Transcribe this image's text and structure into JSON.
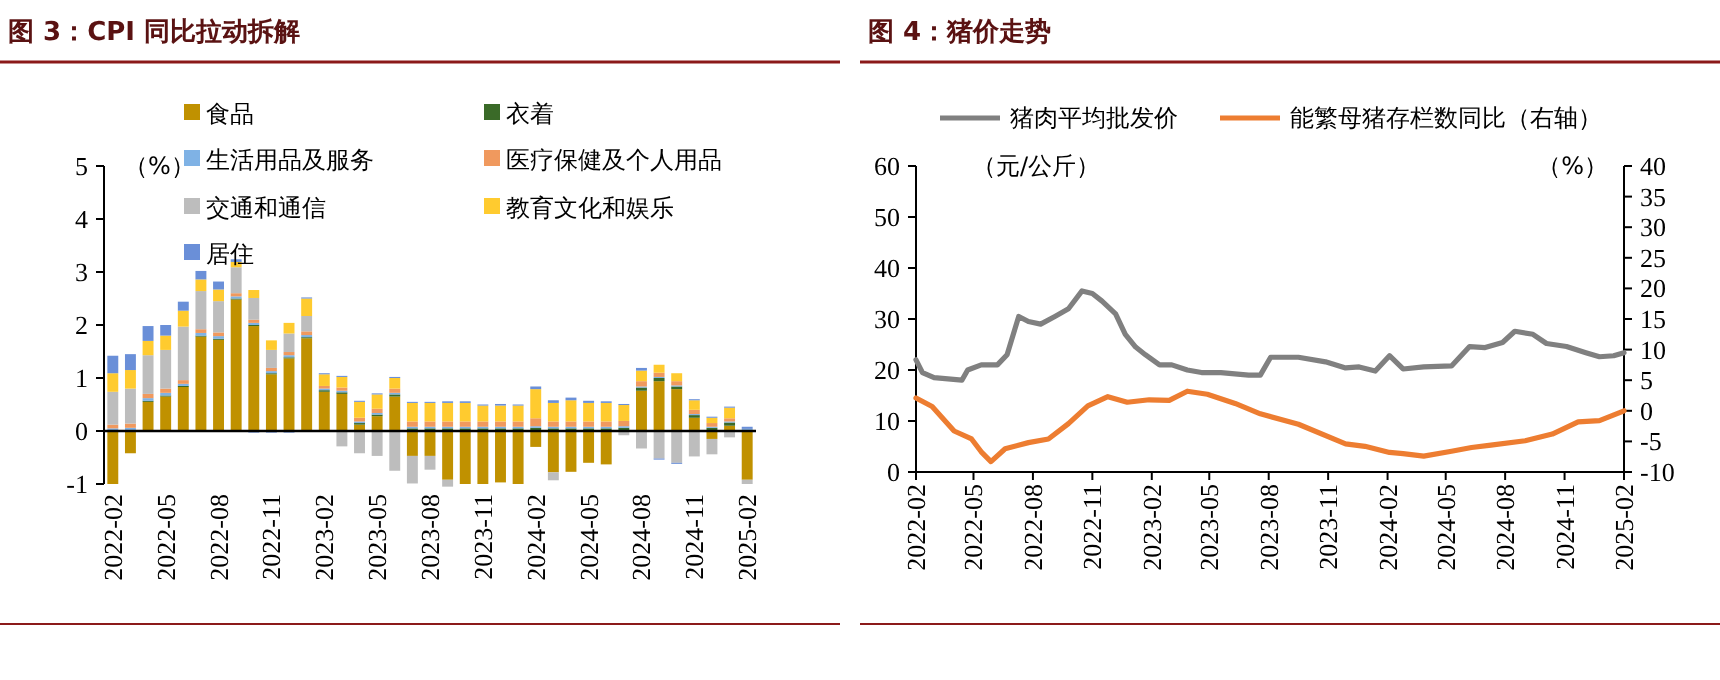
{
  "chart_data": [
    {
      "type": "bar",
      "stacked": true,
      "title": "图 3：CPI 同比拉动拆解",
      "ylabel": "（%）",
      "legend": "top",
      "ylim": [
        -1,
        5
      ],
      "yticks": [
        -1,
        0,
        1,
        2,
        3,
        4,
        5
      ],
      "categories": [
        "2022-02",
        null,
        null,
        "2022-05",
        null,
        null,
        "2022-08",
        null,
        null,
        "2022-11",
        null,
        null,
        "2023-02",
        null,
        null,
        "2023-05",
        null,
        null,
        "2023-08",
        null,
        null,
        "2023-11",
        null,
        null,
        "2024-02",
        null,
        null,
        "2024-05",
        null,
        null,
        "2024-08",
        null,
        null,
        "2024-11",
        null,
        null,
        "2025-02"
      ],
      "series": [
        {
          "name": "食品",
          "color": "#c09100",
          "values": [
            -1.0,
            -0.42,
            0.55,
            0.65,
            0.83,
            1.78,
            1.72,
            2.48,
            1.98,
            1.07,
            1.37,
            1.75,
            0.74,
            0.7,
            0.12,
            0.28,
            0.65,
            -0.47,
            -0.47,
            -0.92,
            -1.0,
            -1.0,
            -0.97,
            -1.0,
            -0.3,
            -0.78,
            -0.77,
            -0.6,
            -0.63,
            0.0,
            0.76,
            0.94,
            0.79,
            0.25,
            -0.15,
            0.1,
            -0.92
          ]
        },
        {
          "name": "衣着",
          "color": "#3a6a28",
          "values": [
            0.02,
            0.02,
            0.02,
            0.02,
            0.02,
            0.02,
            0.02,
            0.02,
            0.02,
            0.02,
            0.02,
            0.02,
            0.03,
            0.03,
            0.03,
            0.03,
            0.04,
            0.05,
            0.05,
            0.05,
            0.05,
            0.05,
            0.05,
            0.05,
            0.06,
            0.05,
            0.05,
            0.05,
            0.05,
            0.06,
            0.06,
            0.06,
            0.05,
            0.05,
            0.06,
            0.06,
            0.02
          ]
        },
        {
          "name": "生活用品及服务",
          "color": "#7fb2e5",
          "values": [
            0.03,
            0.04,
            0.05,
            0.05,
            0.04,
            0.05,
            0.05,
            0.04,
            0.04,
            0.04,
            0.04,
            0.04,
            0.03,
            0.03,
            0.03,
            0.03,
            0.03,
            0.03,
            0.03,
            0.03,
            0.03,
            0.03,
            0.03,
            0.03,
            0.03,
            0.03,
            0.03,
            0.03,
            0.03,
            0.03,
            0.02,
            0.02,
            0.02,
            0.02,
            0.02,
            0.02,
            0.02
          ]
        },
        {
          "name": "医疗保健及个人用品",
          "color": "#f0995e",
          "values": [
            0.07,
            0.08,
            0.08,
            0.08,
            0.07,
            0.07,
            0.07,
            0.06,
            0.06,
            0.06,
            0.06,
            0.07,
            0.05,
            0.06,
            0.07,
            0.08,
            0.08,
            0.1,
            0.1,
            0.1,
            0.1,
            0.1,
            0.1,
            0.1,
            0.15,
            0.1,
            0.1,
            0.1,
            0.1,
            0.1,
            0.1,
            0.08,
            0.08,
            0.08,
            0.07,
            0.06,
            0
          ]
        },
        {
          "name": "交通和通信",
          "color": "#bdbdbd",
          "values": [
            0.62,
            0.66,
            0.73,
            0.73,
            1.01,
            0.72,
            0.59,
            0.49,
            0.41,
            0.34,
            0.35,
            0.29,
            null,
            -0.29,
            -0.42,
            -0.47,
            -0.75,
            -0.52,
            -0.26,
            -0.13,
            0,
            0,
            null,
            0,
            0,
            -0.15,
            0,
            null,
            0,
            -0.08,
            -0.33,
            -0.52,
            -0.6,
            -0.48,
            -0.29,
            -0.12,
            -0.08
          ]
        },
        {
          "name": "教育文化和娱乐",
          "color": "#ffcb2f",
          "values": [
            0.35,
            0.35,
            0.27,
            0.27,
            0.3,
            0.22,
            0.22,
            0.1,
            0.15,
            0.18,
            0.2,
            0.33,
            0.22,
            0.2,
            0.3,
            0.27,
            0.2,
            0.35,
            0.35,
            0.35,
            0.35,
            0.3,
            0.3,
            0.3,
            0.55,
            0.35,
            0.4,
            0.35,
            0.35,
            0.3,
            0.2,
            0.15,
            0.15,
            0.18,
            0.1,
            0.2,
            0
          ]
        },
        {
          "name": "居住",
          "color": "#6a8fd8",
          "values": [
            0.33,
            0.3,
            0.28,
            0.2,
            0.17,
            0.16,
            0.15,
            0.05,
            -0.03,
            -0.03,
            -0.03,
            0.02,
            0.02,
            0.02,
            0.02,
            0.02,
            0.02,
            0.02,
            0.02,
            0.03,
            0.03,
            0.02,
            0.03,
            0.02,
            0.05,
            0.05,
            0.05,
            0.04,
            0.03,
            0.02,
            0.05,
            -0.02,
            -0.02,
            0.02,
            0.02,
            0.02,
            0.04
          ]
        }
      ]
    },
    {
      "type": "line",
      "title": "图 4：猪价走势",
      "ylabel": "（元/公斤）",
      "y2label": "（%）",
      "legend": "top",
      "grid": false,
      "xlim": [
        "2022-02-01",
        "2025-02-01"
      ],
      "xticks": [
        "2022-02",
        "2022-05",
        "2022-08",
        "2022-11",
        "2023-02",
        "2023-05",
        "2023-08",
        "2023-11",
        "2024-02",
        "2024-05",
        "2024-08",
        "2024-11",
        "2025-02"
      ],
      "ylim": [
        0,
        60
      ],
      "yticks": [
        0,
        10,
        20,
        30,
        40,
        50,
        60
      ],
      "y2lim": [
        -10,
        40
      ],
      "y2ticks": [
        -10,
        -5,
        0,
        5,
        10,
        15,
        20,
        25,
        30,
        35,
        40
      ],
      "series": [
        {
          "name": "猪肉平均批发价",
          "color": "#808080",
          "x": [
            "2022-02-01",
            "2022-02-11",
            "2022-03-01",
            "2022-04-13",
            "2022-04-22",
            "2022-05-13",
            "2022-06-07",
            "2022-06-22",
            "2022-07-10",
            "2022-07-25",
            "2022-08-13",
            "2022-09-04",
            "2022-09-25",
            "2022-10-16",
            "2022-11-01",
            "2022-11-16",
            "2022-12-07",
            "2022-12-22",
            "2023-01-07",
            "2023-01-22",
            "2023-02-13",
            "2023-03-04",
            "2023-03-28",
            "2023-04-19",
            "2023-05-19",
            "2023-07-01",
            "2023-07-19",
            "2023-08-04",
            "2023-08-16",
            "2023-09-16",
            "2023-10-28",
            "2023-11-28",
            "2023-12-19",
            "2024-01-13",
            "2024-02-04",
            "2024-02-25",
            "2024-03-28",
            "2024-05-10",
            "2024-06-07",
            "2024-07-01",
            "2024-07-28",
            "2024-08-16",
            "2024-09-13",
            "2024-10-04",
            "2024-11-04",
            "2024-12-04",
            "2024-12-25",
            "2025-01-16",
            "2025-02-01"
          ],
          "values": [
            22,
            19.5,
            18.5,
            18,
            20,
            21,
            21,
            23,
            30.5,
            29.5,
            29,
            30.5,
            32,
            35.5,
            35,
            33.5,
            31,
            27,
            24.5,
            23,
            21,
            21,
            20,
            19.5,
            19.5,
            19,
            19,
            22.5,
            22.5,
            22.5,
            21.6,
            20.4,
            20.6,
            19.8,
            22.8,
            20.2,
            20.6,
            20.8,
            24.6,
            24.4,
            25.4,
            27.6,
            27,
            25.2,
            24.6,
            23.4,
            22.6,
            22.8,
            23.4
          ]
        },
        {
          "name": "能繁母猪存栏数同比（右轴）",
          "color": "#ed7d31",
          "axis": "y2",
          "x": [
            "2022-02-01",
            "2022-02-26",
            "2022-04-01",
            "2022-04-28",
            "2022-05-13",
            "2022-05-28",
            "2022-06-19",
            "2022-07-25",
            "2022-08-25",
            "2022-09-25",
            "2022-10-25",
            "2022-11-25",
            "2022-12-25",
            "2023-01-28",
            "2023-02-28",
            "2023-03-28",
            "2023-04-28",
            "2023-06-10",
            "2023-07-19",
            "2023-09-16",
            "2023-11-28",
            "2023-12-28",
            "2024-02-04",
            "2024-02-25",
            "2024-03-28",
            "2024-05-10",
            "2024-06-10",
            "2024-07-10",
            "2024-09-01",
            "2024-10-13",
            "2024-11-22",
            "2024-12-25",
            "2025-02-01"
          ],
          "values": [
            2.1,
            0.7,
            -3.3,
            -4.6,
            -6.7,
            -8.3,
            -6.2,
            -5.2,
            -4.6,
            -2.1,
            0.8,
            2.3,
            1.4,
            1.8,
            1.7,
            3.2,
            2.7,
            1.2,
            -0.5,
            -2.2,
            -5.4,
            -5.8,
            -6.8,
            -7.0,
            -7.4,
            -6.6,
            -6.0,
            -5.6,
            -4.9,
            -3.8,
            -1.8,
            -1.6,
            0
          ]
        }
      ]
    }
  ]
}
